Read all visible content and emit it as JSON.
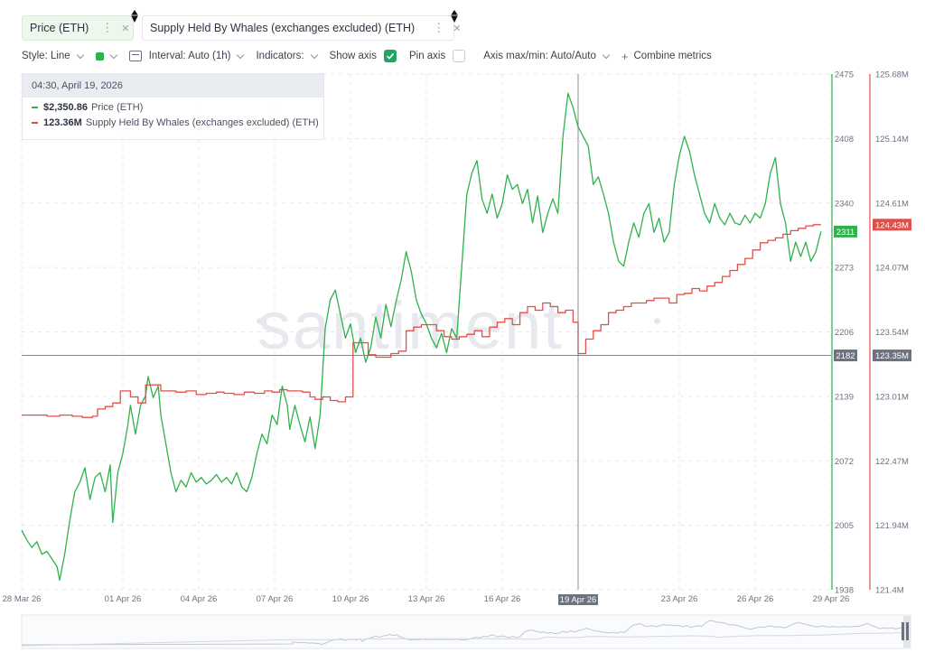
{
  "tabs": [
    {
      "label": "Price (ETH)",
      "color": "#2fb24b"
    },
    {
      "label": "Supply Held By Whales (exchanges excluded) (ETH)",
      "color": "#e0504a"
    }
  ],
  "toolbar": {
    "style": "Style: Line",
    "interval": "Interval: Auto (1h)",
    "indicators": "Indicators:",
    "show_axis": "Show axis",
    "show_axis_checked": true,
    "pin_axis": "Pin axis",
    "pin_axis_checked": false,
    "axis_maxmin": "Axis max/min: Auto/Auto",
    "combine": "Combine metrics"
  },
  "tooltip": {
    "time": "04:30, April 19, 2026",
    "price_value": "$2,350.86",
    "price_name": "Price (ETH)",
    "whales_value": "123.36M",
    "whales_name": "Supply Held By Whales (exchanges excluded) (ETH)"
  },
  "watermark": "santiment",
  "crosshair": {
    "date_label": "19 Apr 26",
    "price_label": "2182",
    "whales_label": "123.35M"
  },
  "chart_data": {
    "type": "line",
    "x_ticks": [
      "28 Mar 26",
      "01 Apr 26",
      "04 Apr 26",
      "07 Apr 26",
      "10 Apr 26",
      "13 Apr 26",
      "16 Apr 26",
      "19 Apr 26",
      "23 Apr 26",
      "26 Apr 26",
      "29 Apr 26"
    ],
    "x_tick_days": [
      0,
      4,
      7,
      10,
      13,
      16,
      19,
      22,
      26,
      29,
      32
    ],
    "price_axis": {
      "ticks": [
        "2475",
        "2408",
        "2340",
        "2273",
        "2206",
        "2139",
        "2072",
        "2005",
        "1938"
      ],
      "ylim": [
        1938,
        2475
      ],
      "current_label": "2311",
      "color": "#2fb24b"
    },
    "whales_axis": {
      "ticks": [
        "125.68M",
        "125.14M",
        "124.61M",
        "124.07M",
        "123.54M",
        "123.01M",
        "122.47M",
        "121.94M",
        "121.4M"
      ],
      "ylim": [
        121.4,
        125.68
      ],
      "current_label": "124.43M",
      "color": "#e0504a"
    },
    "series": [
      {
        "name": "Price (ETH)",
        "axis": "price",
        "color": "#2fb24b",
        "points": [
          [
            0.0,
            2000
          ],
          [
            0.2,
            1990
          ],
          [
            0.4,
            1982
          ],
          [
            0.6,
            1988
          ],
          [
            0.8,
            1975
          ],
          [
            1.0,
            1978
          ],
          [
            1.2,
            1970
          ],
          [
            1.4,
            1962
          ],
          [
            1.5,
            1948
          ],
          [
            1.7,
            1975
          ],
          [
            1.9,
            2010
          ],
          [
            2.1,
            2040
          ],
          [
            2.3,
            2050
          ],
          [
            2.5,
            2065
          ],
          [
            2.7,
            2032
          ],
          [
            2.9,
            2055
          ],
          [
            3.1,
            2060
          ],
          [
            3.3,
            2040
          ],
          [
            3.5,
            2068
          ],
          [
            3.6,
            2008
          ],
          [
            3.8,
            2060
          ],
          [
            4.0,
            2080
          ],
          [
            4.2,
            2110
          ],
          [
            4.3,
            2130
          ],
          [
            4.5,
            2100
          ],
          [
            4.7,
            2130
          ],
          [
            4.9,
            2140
          ],
          [
            5.0,
            2160
          ],
          [
            5.2,
            2138
          ],
          [
            5.4,
            2150
          ],
          [
            5.5,
            2120
          ],
          [
            5.7,
            2090
          ],
          [
            5.9,
            2060
          ],
          [
            6.1,
            2040
          ],
          [
            6.3,
            2052
          ],
          [
            6.5,
            2045
          ],
          [
            6.7,
            2060
          ],
          [
            6.9,
            2050
          ],
          [
            7.1,
            2055
          ],
          [
            7.3,
            2048
          ],
          [
            7.5,
            2052
          ],
          [
            7.7,
            2058
          ],
          [
            7.9,
            2050
          ],
          [
            8.1,
            2055
          ],
          [
            8.3,
            2048
          ],
          [
            8.5,
            2060
          ],
          [
            8.7,
            2045
          ],
          [
            8.9,
            2040
          ],
          [
            9.1,
            2055
          ],
          [
            9.3,
            2080
          ],
          [
            9.5,
            2100
          ],
          [
            9.7,
            2090
          ],
          [
            9.9,
            2120
          ],
          [
            10.1,
            2110
          ],
          [
            10.3,
            2150
          ],
          [
            10.5,
            2130
          ],
          [
            10.6,
            2105
          ],
          [
            10.8,
            2130
          ],
          [
            11.0,
            2110
          ],
          [
            11.2,
            2092
          ],
          [
            11.4,
            2118
          ],
          [
            11.6,
            2085
          ],
          [
            11.8,
            2120
          ],
          [
            12.0,
            2210
          ],
          [
            12.2,
            2240
          ],
          [
            12.4,
            2250
          ],
          [
            12.6,
            2225
          ],
          [
            12.8,
            2200
          ],
          [
            13.0,
            2215
          ],
          [
            13.2,
            2185
          ],
          [
            13.4,
            2200
          ],
          [
            13.6,
            2175
          ],
          [
            13.8,
            2190
          ],
          [
            14.0,
            2222
          ],
          [
            14.2,
            2200
          ],
          [
            14.4,
            2235
          ],
          [
            14.6,
            2212
          ],
          [
            14.8,
            2238
          ],
          [
            15.0,
            2260
          ],
          [
            15.2,
            2290
          ],
          [
            15.4,
            2270
          ],
          [
            15.6,
            2240
          ],
          [
            15.8,
            2225
          ],
          [
            16.0,
            2215
          ],
          [
            16.2,
            2200
          ],
          [
            16.4,
            2190
          ],
          [
            16.6,
            2205
          ],
          [
            16.8,
            2185
          ],
          [
            17.0,
            2210
          ],
          [
            17.2,
            2200
          ],
          [
            17.4,
            2275
          ],
          [
            17.6,
            2350
          ],
          [
            17.8,
            2372
          ],
          [
            18.0,
            2385
          ],
          [
            18.2,
            2345
          ],
          [
            18.4,
            2330
          ],
          [
            18.6,
            2350
          ],
          [
            18.8,
            2325
          ],
          [
            19.0,
            2340
          ],
          [
            19.2,
            2370
          ],
          [
            19.4,
            2355
          ],
          [
            19.6,
            2360
          ],
          [
            19.8,
            2340
          ],
          [
            20.0,
            2355
          ],
          [
            20.2,
            2320
          ],
          [
            20.4,
            2348
          ],
          [
            20.6,
            2310
          ],
          [
            20.8,
            2330
          ],
          [
            21.0,
            2345
          ],
          [
            21.2,
            2330
          ],
          [
            21.4,
            2410
          ],
          [
            21.6,
            2455
          ],
          [
            21.8,
            2440
          ],
          [
            22.0,
            2420
          ],
          [
            22.2,
            2410
          ],
          [
            22.4,
            2400
          ],
          [
            22.6,
            2360
          ],
          [
            22.8,
            2368
          ],
          [
            23.0,
            2350
          ],
          [
            23.2,
            2330
          ],
          [
            23.4,
            2300
          ],
          [
            23.6,
            2280
          ],
          [
            23.8,
            2275
          ],
          [
            24.0,
            2300
          ],
          [
            24.2,
            2320
          ],
          [
            24.4,
            2305
          ],
          [
            24.6,
            2330
          ],
          [
            24.8,
            2340
          ],
          [
            25.0,
            2310
          ],
          [
            25.2,
            2325
          ],
          [
            25.4,
            2300
          ],
          [
            25.6,
            2310
          ],
          [
            25.8,
            2360
          ],
          [
            26.0,
            2390
          ],
          [
            26.2,
            2410
          ],
          [
            26.4,
            2395
          ],
          [
            26.6,
            2370
          ],
          [
            26.8,
            2350
          ],
          [
            27.0,
            2330
          ],
          [
            27.2,
            2320
          ],
          [
            27.4,
            2340
          ],
          [
            27.6,
            2325
          ],
          [
            27.8,
            2318
          ],
          [
            28.0,
            2330
          ],
          [
            28.2,
            2320
          ],
          [
            28.4,
            2318
          ],
          [
            28.6,
            2328
          ],
          [
            28.8,
            2320
          ],
          [
            29.0,
            2330
          ],
          [
            29.2,
            2325
          ],
          [
            29.4,
            2340
          ],
          [
            29.6,
            2372
          ],
          [
            29.8,
            2388
          ],
          [
            30.0,
            2340
          ],
          [
            30.2,
            2320
          ],
          [
            30.4,
            2280
          ],
          [
            30.6,
            2300
          ],
          [
            30.8,
            2285
          ],
          [
            31.0,
            2300
          ],
          [
            31.2,
            2280
          ],
          [
            31.4,
            2290
          ],
          [
            31.6,
            2311
          ]
        ]
      },
      {
        "name": "Supply Held By Whales (exchanges excluded) (ETH)",
        "axis": "whales",
        "color": "#e0504a",
        "points": [
          [
            0.0,
            122.85
          ],
          [
            0.6,
            122.85
          ],
          [
            1.0,
            122.84
          ],
          [
            1.5,
            122.85
          ],
          [
            2.0,
            122.84
          ],
          [
            2.4,
            122.83
          ],
          [
            2.8,
            122.84
          ],
          [
            3.0,
            122.9
          ],
          [
            3.3,
            122.92
          ],
          [
            3.6,
            122.95
          ],
          [
            3.9,
            123.05
          ],
          [
            4.3,
            123.0
          ],
          [
            4.6,
            122.95
          ],
          [
            4.9,
            123.1
          ],
          [
            5.2,
            123.1
          ],
          [
            5.5,
            123.05
          ],
          [
            5.8,
            123.05
          ],
          [
            6.1,
            123.04
          ],
          [
            6.5,
            123.05
          ],
          [
            6.9,
            123.02
          ],
          [
            7.3,
            123.03
          ],
          [
            7.7,
            123.04
          ],
          [
            8.0,
            123.03
          ],
          [
            8.4,
            123.02
          ],
          [
            8.8,
            123.04
          ],
          [
            9.2,
            123.03
          ],
          [
            9.6,
            123.05
          ],
          [
            9.9,
            123.04
          ],
          [
            10.2,
            123.06
          ],
          [
            10.5,
            123.05
          ],
          [
            10.8,
            123.05
          ],
          [
            11.1,
            123.04
          ],
          [
            11.4,
            123.0
          ],
          [
            11.6,
            122.98
          ],
          [
            11.9,
            123.0
          ],
          [
            12.2,
            122.97
          ],
          [
            12.5,
            122.96
          ],
          [
            12.8,
            123.0
          ],
          [
            13.1,
            123.45
          ],
          [
            13.4,
            123.45
          ],
          [
            13.7,
            123.35
          ],
          [
            14.0,
            123.33
          ],
          [
            14.3,
            123.33
          ],
          [
            14.6,
            123.36
          ],
          [
            14.9,
            123.38
          ],
          [
            15.2,
            123.55
          ],
          [
            15.5,
            123.58
          ],
          [
            15.8,
            123.6
          ],
          [
            16.1,
            123.6
          ],
          [
            16.4,
            123.55
          ],
          [
            16.7,
            123.5
          ],
          [
            17.0,
            123.48
          ],
          [
            17.3,
            123.5
          ],
          [
            17.6,
            123.52
          ],
          [
            17.9,
            123.55
          ],
          [
            18.2,
            123.5
          ],
          [
            18.5,
            123.58
          ],
          [
            18.8,
            123.62
          ],
          [
            19.1,
            123.65
          ],
          [
            19.4,
            123.6
          ],
          [
            19.7,
            123.7
          ],
          [
            20.0,
            123.75
          ],
          [
            20.3,
            123.72
          ],
          [
            20.6,
            123.78
          ],
          [
            20.9,
            123.75
          ],
          [
            21.2,
            123.7
          ],
          [
            21.5,
            123.72
          ],
          [
            21.8,
            123.62
          ],
          [
            22.0,
            123.36
          ],
          [
            22.3,
            123.48
          ],
          [
            22.6,
            123.55
          ],
          [
            22.9,
            123.6
          ],
          [
            23.2,
            123.7
          ],
          [
            23.5,
            123.72
          ],
          [
            23.8,
            123.75
          ],
          [
            24.1,
            123.78
          ],
          [
            24.4,
            123.78
          ],
          [
            24.7,
            123.8
          ],
          [
            25.0,
            123.82
          ],
          [
            25.3,
            123.82
          ],
          [
            25.6,
            123.78
          ],
          [
            25.9,
            123.85
          ],
          [
            26.2,
            123.86
          ],
          [
            26.5,
            123.9
          ],
          [
            26.8,
            123.88
          ],
          [
            27.1,
            123.92
          ],
          [
            27.4,
            123.95
          ],
          [
            27.7,
            124.0
          ],
          [
            28.0,
            124.05
          ],
          [
            28.3,
            124.1
          ],
          [
            28.6,
            124.15
          ],
          [
            28.9,
            124.22
          ],
          [
            29.2,
            124.28
          ],
          [
            29.5,
            124.3
          ],
          [
            29.8,
            124.32
          ],
          [
            30.1,
            124.35
          ],
          [
            30.4,
            124.38
          ],
          [
            30.7,
            124.4
          ],
          [
            31.0,
            124.42
          ],
          [
            31.3,
            124.43
          ],
          [
            31.6,
            124.43
          ]
        ]
      }
    ],
    "grid": true
  }
}
